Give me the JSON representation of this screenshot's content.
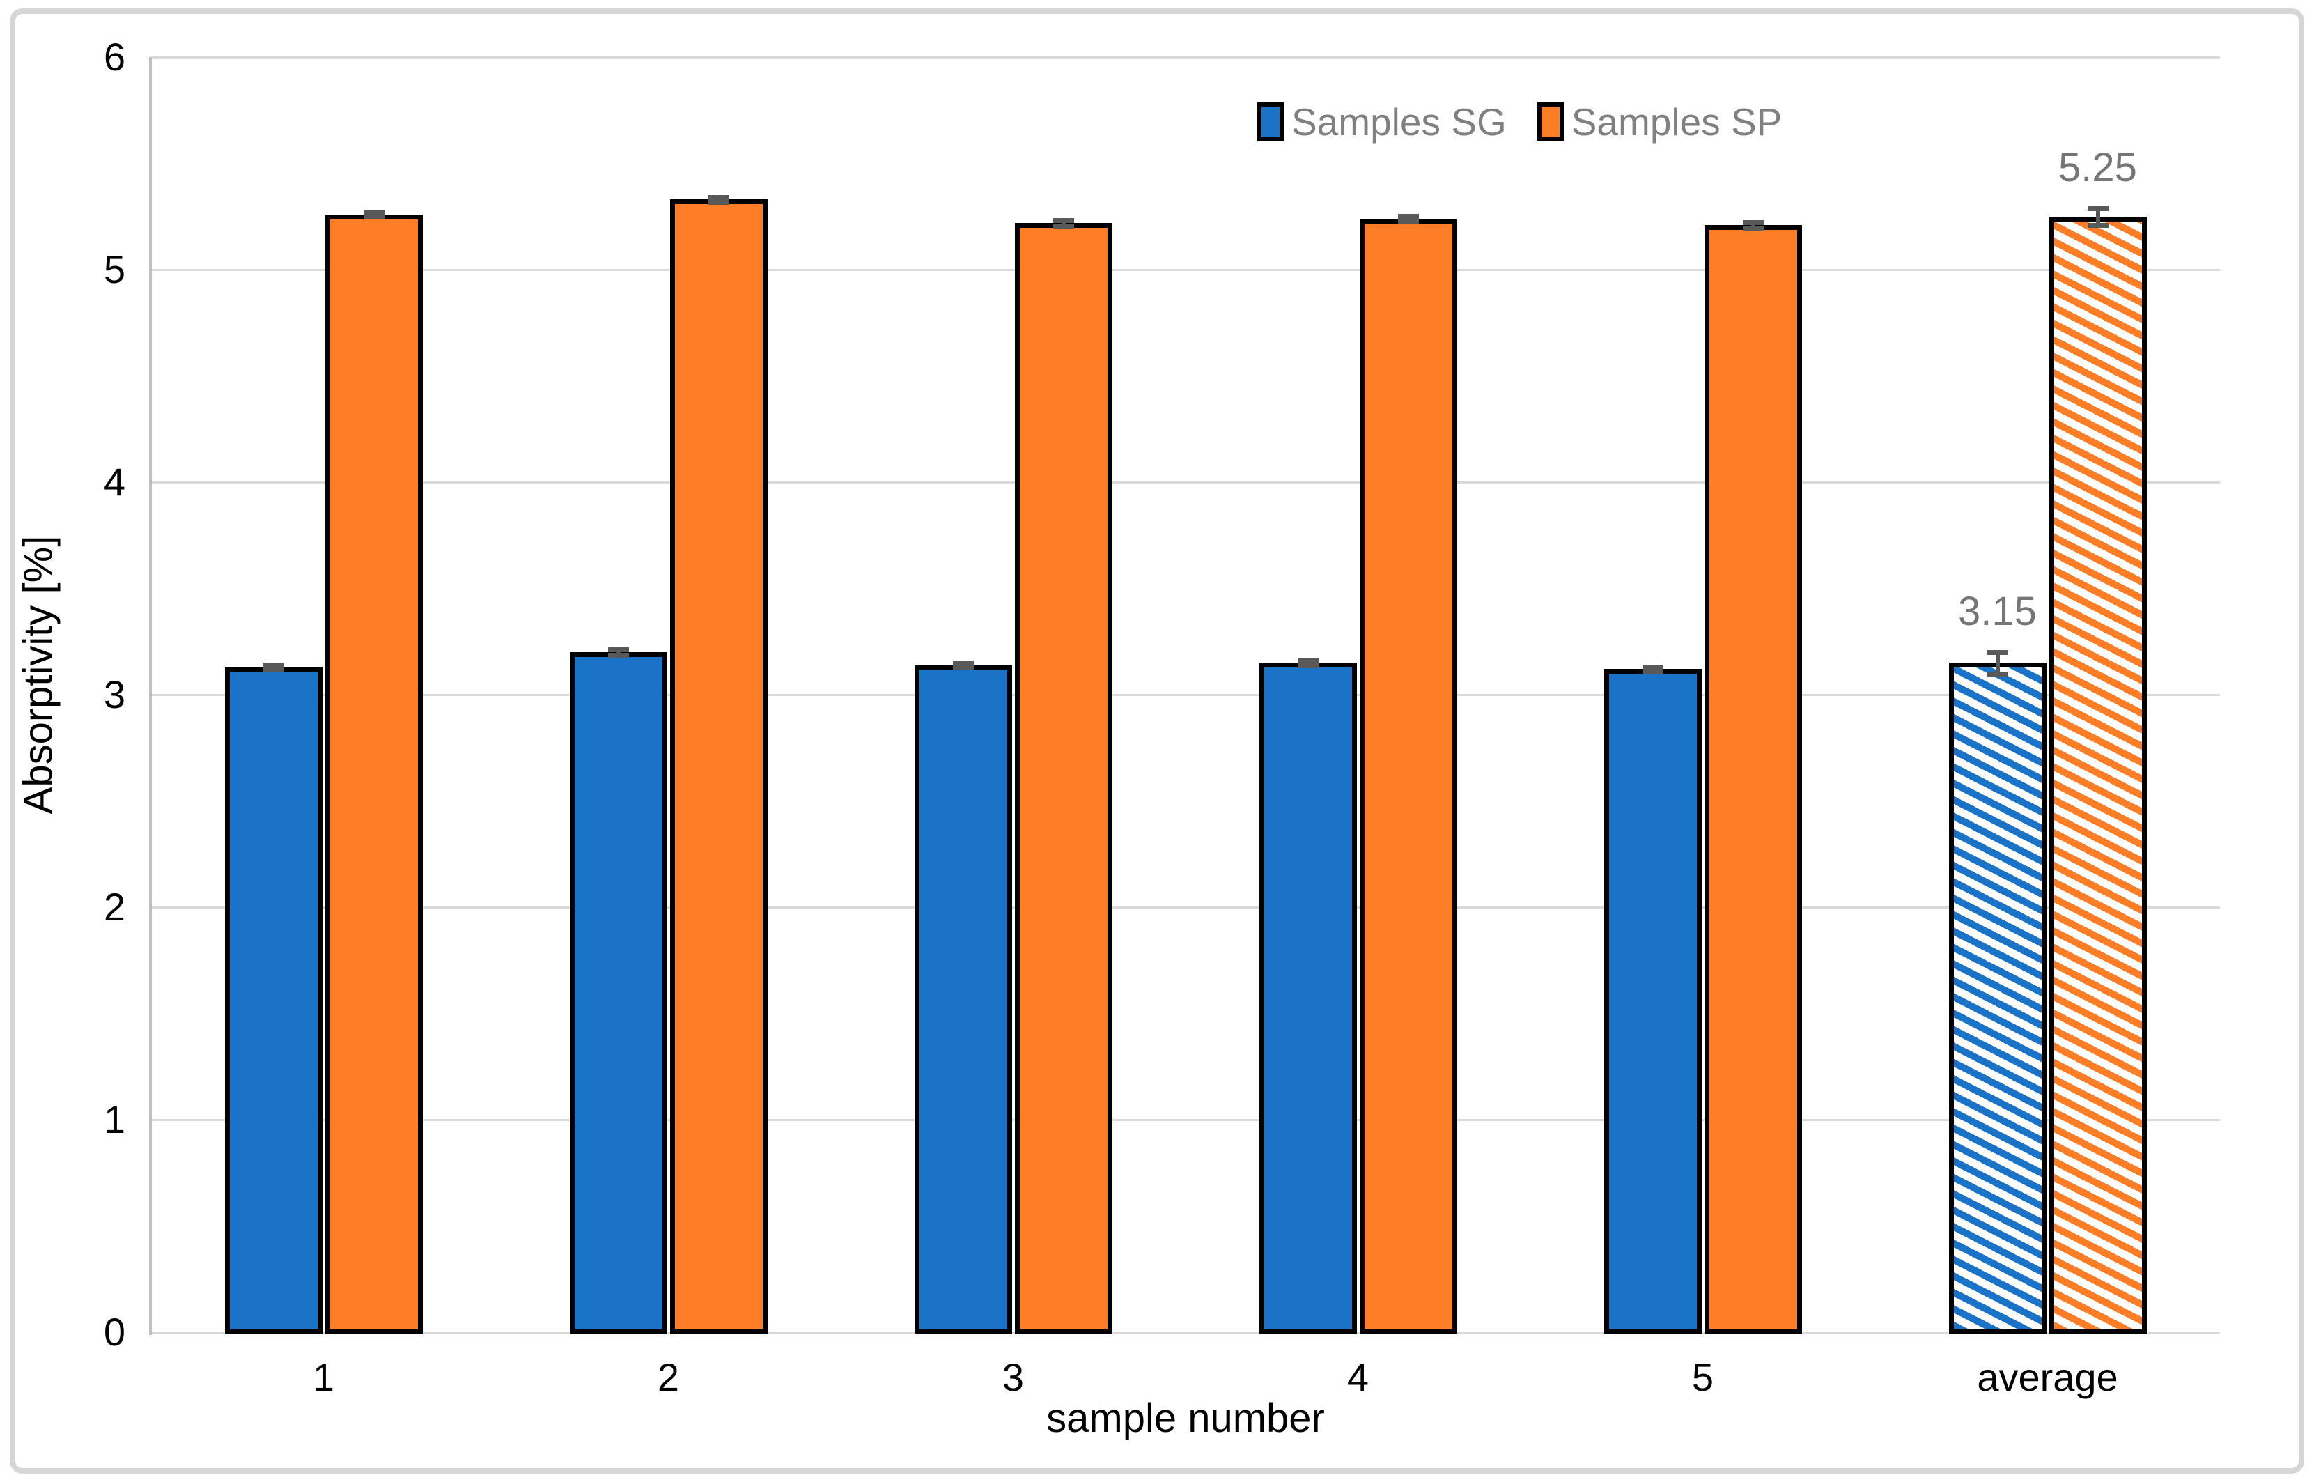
{
  "chart_data": {
    "type": "bar",
    "title": "",
    "xlabel": "sample number",
    "ylabel": "Absorptivity [%]",
    "ylim": [
      0,
      6
    ],
    "ytick_labels": [
      "0",
      "1",
      "2",
      "3",
      "4",
      "5",
      "6"
    ],
    "grid": true,
    "legend_position": "top-right-inside",
    "categories": [
      "1",
      "2",
      "3",
      "4",
      "5",
      "average"
    ],
    "series": [
      {
        "name": "Samples SG",
        "color": "#1B73C7",
        "values": [
          3.13,
          3.2,
          3.14,
          3.15,
          3.12,
          3.15
        ],
        "errors": [
          0.012,
          0.012,
          0.012,
          0.012,
          0.012,
          0.05
        ]
      },
      {
        "name": "Samples SP",
        "color": "#FD7E27",
        "values": [
          5.26,
          5.33,
          5.22,
          5.24,
          5.21,
          5.25
        ],
        "errors": [
          0.012,
          0.012,
          0.012,
          0.012,
          0.012,
          0.04
        ]
      }
    ],
    "hatched_category": "average",
    "annotations": [
      {
        "text": "3.15",
        "category": "average",
        "series": "Samples SG"
      },
      {
        "text": "5.25",
        "category": "average",
        "series": "Samples SP"
      }
    ]
  },
  "legend": {
    "items": [
      {
        "label": "Samples SG",
        "color": "#1B73C7"
      },
      {
        "label": "Samples SP",
        "color": "#FD7E27"
      }
    ]
  },
  "colors": {
    "gridline": "#D9D9D9",
    "axis_line": "#BFBFBF",
    "error_bar": "#595959",
    "bar_border": "#000000",
    "label_gray": "#767676",
    "legend_text": "#808080",
    "outer_border": "#D6D6D6"
  }
}
